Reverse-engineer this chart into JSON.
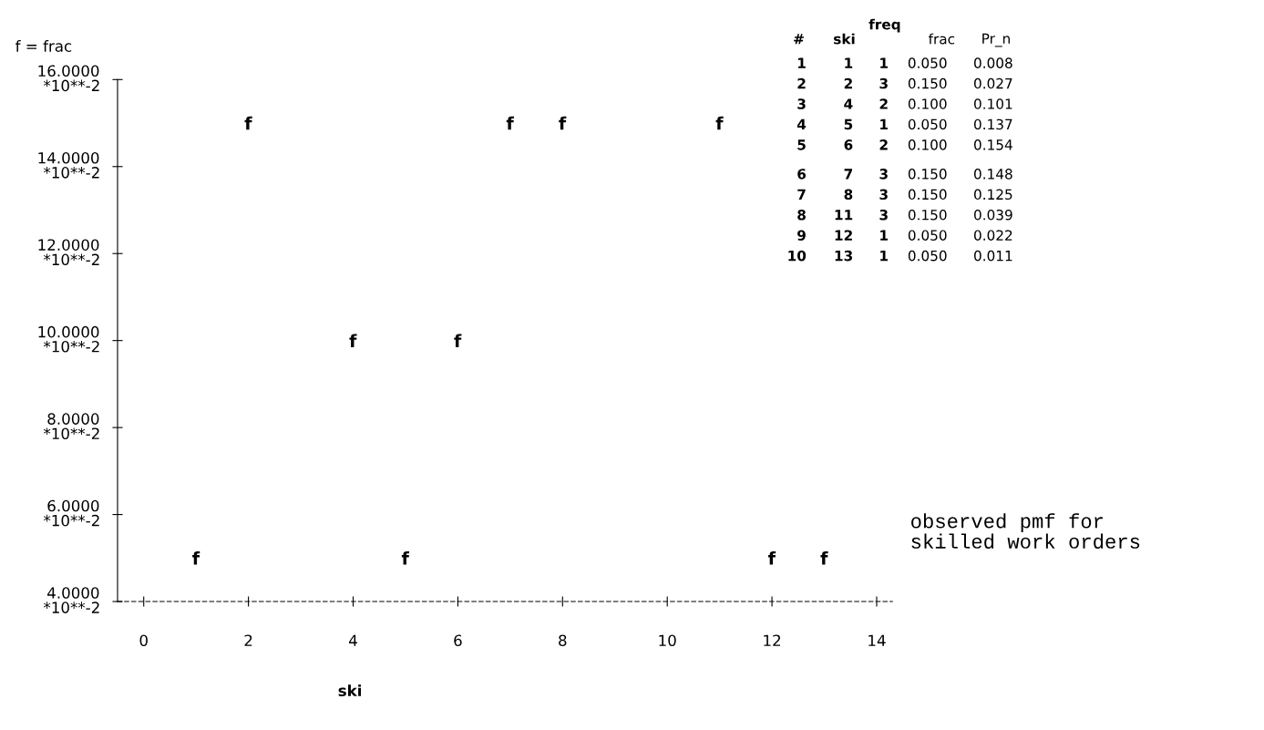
{
  "chart_data": {
    "type": "scatter",
    "ylabel": "f = frac",
    "xlabel": "ski",
    "x": [
      1,
      2,
      4,
      5,
      6,
      7,
      8,
      11,
      12,
      13
    ],
    "values": [
      5,
      15,
      10,
      5,
      10,
      15,
      15,
      15,
      5,
      5
    ],
    "color": "#000000",
    "xlim": [
      -0.5,
      14.3
    ],
    "xticks": [
      0,
      2,
      4,
      6,
      8,
      10,
      12,
      14
    ],
    "ylim": [
      4,
      16
    ],
    "yticks": [
      {
        "value": 4,
        "label": "4.0000"
      },
      {
        "value": 6,
        "label": "6.0000"
      },
      {
        "value": 8,
        "label": "8.0000"
      },
      {
        "value": 10,
        "label": "10.0000"
      },
      {
        "value": 12,
        "label": "12.0000"
      },
      {
        "value": 14,
        "label": "14.0000"
      },
      {
        "value": 16,
        "label": "16.0000"
      }
    ],
    "grid": false,
    "annotations": [
      "*10**-2",
      "# ski freq frac Pr_n",
      "1 1 1 0.050 0.008",
      "2 2 3 0.150 0.027",
      "3 4 2 0.100 0.101",
      "4 5 1 0.050 0.137",
      "5 6 2 0.100 0.154",
      "6 7 3 0.150 0.148",
      "7 8 3 0.150 0.125",
      "8 11 3 0.150 0.039",
      "9 12 1 0.050 0.022",
      "10 13 1 0.050 0.011",
      "observed pmf for\nskilled work orders"
    ]
  }
}
